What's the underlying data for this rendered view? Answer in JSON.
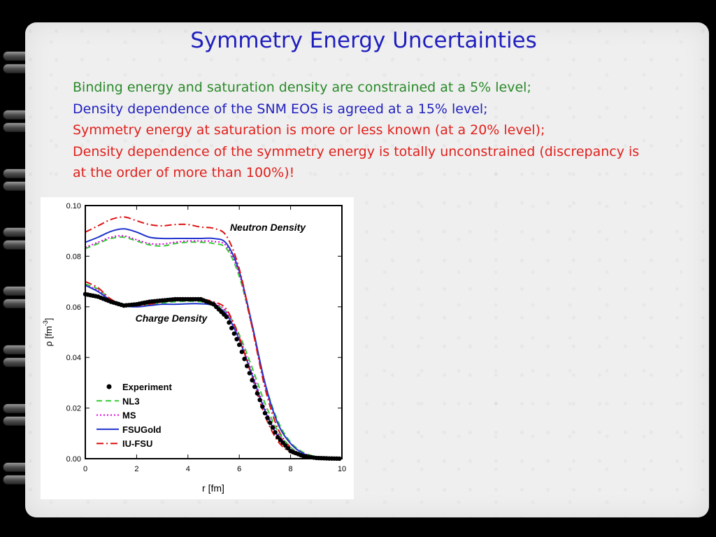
{
  "slide": {
    "title": "Symmetry Energy Uncertainties",
    "lines": [
      {
        "text": "Binding energy and saturation density are constrained at a 5% level;",
        "color": "#2a8a2a"
      },
      {
        "text": "Density dependence of the SNM EOS is agreed at a 15% level;",
        "color": "#1f1fbf"
      },
      {
        "text": "Symmetry energy at saturation is more or less known (at a 20% level);",
        "color": "#e0201c"
      },
      {
        "text": "Density dependence of the symmetry energy is totally unconstrained (discrepancy is",
        "color": "#e0201c"
      },
      {
        "text": "at the order of more than 100%)!",
        "color": "#e0201c"
      }
    ]
  },
  "chart_data": {
    "type": "line",
    "xlabel": "r [fm]",
    "ylabel_main": "ρ [fm",
    "ylabel_sup": "-3",
    "ylabel_end": "]",
    "xlim": [
      0,
      10
    ],
    "ylim": [
      0,
      0.1
    ],
    "x_ticks": [
      "0",
      "2",
      "4",
      "6",
      "8",
      "10"
    ],
    "y_ticks": [
      "0.00",
      "0.02",
      "0.04",
      "0.06",
      "0.08",
      "0.10"
    ],
    "annotations": {
      "neutron": "Neutron Density",
      "charge": "Charge Density"
    },
    "legend_position": "bottom-left",
    "legend": [
      {
        "name": "Experiment",
        "style": "dots",
        "color": "#000000"
      },
      {
        "name": "NL3",
        "style": "dash",
        "color": "#33cc33"
      },
      {
        "name": "MS",
        "style": "dot",
        "color": "#dd00dd"
      },
      {
        "name": "FSUGold",
        "style": "solid",
        "color": "#1f33cc"
      },
      {
        "name": "IU-FSU",
        "style": "dashdot",
        "color": "#dd1111"
      }
    ],
    "x": [
      0,
      0.5,
      1,
      1.5,
      2,
      2.5,
      3,
      3.5,
      4,
      4.5,
      5,
      5.5,
      6,
      6.5,
      7,
      7.5,
      8,
      8.5,
      9,
      9.5,
      10
    ],
    "series": [
      {
        "name": "NL3",
        "group": "neutron",
        "values": [
          0.083,
          0.085,
          0.087,
          0.0875,
          0.086,
          0.0845,
          0.084,
          0.085,
          0.0855,
          0.0855,
          0.085,
          0.083,
          0.072,
          0.052,
          0.03,
          0.015,
          0.0065,
          0.0025,
          0.0008,
          0.0002,
          0.0
        ]
      },
      {
        "name": "MS",
        "group": "neutron",
        "values": [
          0.0835,
          0.0855,
          0.0875,
          0.088,
          0.0865,
          0.085,
          0.0848,
          0.0855,
          0.086,
          0.086,
          0.0858,
          0.084,
          0.073,
          0.052,
          0.029,
          0.014,
          0.006,
          0.0022,
          0.0007,
          0.0002,
          0.0
        ]
      },
      {
        "name": "FSUGold",
        "group": "neutron",
        "values": [
          0.0855,
          0.0875,
          0.0898,
          0.0908,
          0.0895,
          0.0875,
          0.087,
          0.087,
          0.087,
          0.087,
          0.087,
          0.085,
          0.074,
          0.053,
          0.03,
          0.014,
          0.006,
          0.002,
          0.0006,
          0.0002,
          0.0
        ]
      },
      {
        "name": "IU-FSU",
        "group": "neutron",
        "values": [
          0.0895,
          0.092,
          0.0945,
          0.0955,
          0.094,
          0.0925,
          0.092,
          0.0925,
          0.0925,
          0.0915,
          0.091,
          0.088,
          0.075,
          0.052,
          0.028,
          0.012,
          0.0045,
          0.0015,
          0.0004,
          0.0001,
          0.0
        ]
      },
      {
        "name": "NL3",
        "group": "charge",
        "values": [
          0.069,
          0.067,
          0.063,
          0.061,
          0.0605,
          0.061,
          0.0615,
          0.062,
          0.0622,
          0.062,
          0.061,
          0.058,
          0.049,
          0.036,
          0.022,
          0.011,
          0.0045,
          0.0015,
          0.0005,
          0.0001,
          0.0
        ]
      },
      {
        "name": "MS",
        "group": "charge",
        "values": [
          0.0685,
          0.0665,
          0.0625,
          0.0605,
          0.0605,
          0.0615,
          0.062,
          0.0625,
          0.0627,
          0.0625,
          0.0615,
          0.058,
          0.048,
          0.034,
          0.02,
          0.01,
          0.004,
          0.0015,
          0.0005,
          0.0001,
          0.0
        ]
      },
      {
        "name": "FSUGold",
        "group": "charge",
        "values": [
          0.0685,
          0.066,
          0.0625,
          0.0605,
          0.06,
          0.0605,
          0.061,
          0.061,
          0.0612,
          0.0612,
          0.0605,
          0.057,
          0.047,
          0.033,
          0.019,
          0.009,
          0.0035,
          0.001,
          0.0003,
          0.0001,
          0.0
        ]
      },
      {
        "name": "IU-FSU",
        "group": "charge",
        "values": [
          0.07,
          0.0675,
          0.063,
          0.061,
          0.0605,
          0.061,
          0.062,
          0.0625,
          0.0628,
          0.063,
          0.062,
          0.059,
          0.048,
          0.032,
          0.017,
          0.007,
          0.0025,
          0.0008,
          0.0002,
          0.0001,
          0.0
        ]
      },
      {
        "name": "Experiment",
        "group": "charge",
        "values": [
          0.065,
          0.064,
          0.062,
          0.0605,
          0.061,
          0.062,
          0.0625,
          0.063,
          0.063,
          0.063,
          0.061,
          0.056,
          0.045,
          0.031,
          0.018,
          0.0085,
          0.003,
          0.001,
          0.0003,
          0.0001,
          0.0
        ]
      }
    ]
  }
}
